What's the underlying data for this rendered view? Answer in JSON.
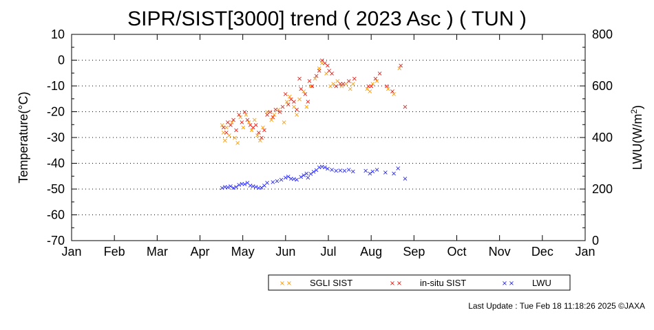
{
  "chart_data": {
    "type": "scatter",
    "title": "SIPR/SIST[3000] trend ( 2023 Asc ) ( TUN )",
    "ylabel": "Temperature(°C)",
    "y2label_main": "LWU(W/m",
    "y2label_sup": "2",
    "y2label_end": ")",
    "xlabel": "",
    "x_categories": [
      "Jan",
      "Feb",
      "Mar",
      "Apr",
      "May",
      "Jun",
      "Jul",
      "Aug",
      "Sep",
      "Oct",
      "Nov",
      "Dec",
      "Jan"
    ],
    "ylim": [
      -70,
      10
    ],
    "yticks": [
      10,
      0,
      -10,
      -20,
      -30,
      -40,
      -50,
      -60,
      -70
    ],
    "y2lim": [
      0,
      800
    ],
    "y2ticks": [
      800,
      600,
      400,
      200,
      0
    ],
    "grid": "horizontal dotted",
    "legend_placement": "bottom",
    "series": [
      {
        "name": "SGLI SIST",
        "color": "#ff9900",
        "axis": "left",
        "points": [
          [
            "2023-04-18",
            -25
          ],
          [
            "2023-04-19",
            -28
          ],
          [
            "2023-04-20",
            -31
          ],
          [
            "2023-04-21",
            -26
          ],
          [
            "2023-04-23",
            -29
          ],
          [
            "2023-04-25",
            -24
          ],
          [
            "2023-04-27",
            -30
          ],
          [
            "2023-04-29",
            -32
          ],
          [
            "2023-05-01",
            -22
          ],
          [
            "2023-05-03",
            -26
          ],
          [
            "2023-05-05",
            -21
          ],
          [
            "2023-05-07",
            -24
          ],
          [
            "2023-05-09",
            -27
          ],
          [
            "2023-05-11",
            -23
          ],
          [
            "2023-05-13",
            -29
          ],
          [
            "2023-05-15",
            -31
          ],
          [
            "2023-05-17",
            -26
          ],
          [
            "2023-05-20",
            -20
          ],
          [
            "2023-05-23",
            -23
          ],
          [
            "2023-05-25",
            -21
          ],
          [
            "2023-05-28",
            -19
          ],
          [
            "2023-06-01",
            -24
          ],
          [
            "2023-06-03",
            -16
          ],
          [
            "2023-06-05",
            -14
          ],
          [
            "2023-06-08",
            -18
          ],
          [
            "2023-06-10",
            -21
          ],
          [
            "2023-06-12",
            -15
          ],
          [
            "2023-06-15",
            -12
          ],
          [
            "2023-06-17",
            -18
          ],
          [
            "2023-06-20",
            -10
          ],
          [
            "2023-06-23",
            -7
          ],
          [
            "2023-06-26",
            -3
          ],
          [
            "2023-06-28",
            -1
          ],
          [
            "2023-07-01",
            -5
          ],
          [
            "2023-07-04",
            -10
          ],
          [
            "2023-07-06",
            -9
          ],
          [
            "2023-07-09",
            -8
          ],
          [
            "2023-07-12",
            -10
          ],
          [
            "2023-07-15",
            -9
          ],
          [
            "2023-07-18",
            -11
          ],
          [
            "2023-07-20",
            -9
          ],
          [
            "2023-07-30",
            -11
          ],
          [
            "2023-08-01",
            -12
          ],
          [
            "2023-08-03",
            -9
          ],
          [
            "2023-08-06",
            -8
          ],
          [
            "2023-08-14",
            -11
          ],
          [
            "2023-08-18",
            -13
          ],
          [
            "2023-08-22",
            -3
          ]
        ]
      },
      {
        "name": "in-situ SIST",
        "color": "#e8140c",
        "axis": "left",
        "points": [
          [
            "2023-04-19",
            -26
          ],
          [
            "2023-04-21",
            -28
          ],
          [
            "2023-04-22",
            -24
          ],
          [
            "2023-04-24",
            -25
          ],
          [
            "2023-04-26",
            -23
          ],
          [
            "2023-04-28",
            -27
          ],
          [
            "2023-04-30",
            -21
          ],
          [
            "2023-05-02",
            -24
          ],
          [
            "2023-05-04",
            -20
          ],
          [
            "2023-05-06",
            -23
          ],
          [
            "2023-05-08",
            -25
          ],
          [
            "2023-05-10",
            -26
          ],
          [
            "2023-05-12",
            -25
          ],
          [
            "2023-05-14",
            -28
          ],
          [
            "2023-05-16",
            -30
          ],
          [
            "2023-05-18",
            -27
          ],
          [
            "2023-05-20",
            -21
          ],
          [
            "2023-05-22",
            -20
          ],
          [
            "2023-05-24",
            -22
          ],
          [
            "2023-05-26",
            -19
          ],
          [
            "2023-05-29",
            -20
          ],
          [
            "2023-05-31",
            -18
          ],
          [
            "2023-06-02",
            -13
          ],
          [
            "2023-06-04",
            -17
          ],
          [
            "2023-06-06",
            -15
          ],
          [
            "2023-06-08",
            -16
          ],
          [
            "2023-06-10",
            -19
          ],
          [
            "2023-06-12",
            -7
          ],
          [
            "2023-06-13",
            -11
          ],
          [
            "2023-06-16",
            -13
          ],
          [
            "2023-06-18",
            -16
          ],
          [
            "2023-06-19",
            -8
          ],
          [
            "2023-06-21",
            -10
          ],
          [
            "2023-06-24",
            -6
          ],
          [
            "2023-06-26",
            -4
          ],
          [
            "2023-06-28",
            0
          ],
          [
            "2023-06-30",
            -1
          ],
          [
            "2023-07-02",
            -2
          ],
          [
            "2023-07-03",
            -4
          ],
          [
            "2023-07-05",
            -5
          ],
          [
            "2023-07-08",
            -10
          ],
          [
            "2023-07-11",
            -9
          ],
          [
            "2023-07-13",
            -9
          ],
          [
            "2023-07-17",
            -8
          ],
          [
            "2023-07-21",
            -7
          ],
          [
            "2023-07-31",
            -10
          ],
          [
            "2023-08-02",
            -10
          ],
          [
            "2023-08-05",
            -7
          ],
          [
            "2023-08-08",
            -5
          ],
          [
            "2023-08-13",
            -10
          ],
          [
            "2023-08-17",
            -12
          ],
          [
            "2023-08-23",
            -2
          ],
          [
            "2023-08-26",
            -18
          ]
        ]
      },
      {
        "name": "LWU",
        "color": "#1a1aff",
        "axis": "right",
        "points": [
          [
            "2023-04-18",
            205
          ],
          [
            "2023-04-20",
            210
          ],
          [
            "2023-04-22",
            208
          ],
          [
            "2023-04-24",
            212
          ],
          [
            "2023-04-26",
            205
          ],
          [
            "2023-04-28",
            210
          ],
          [
            "2023-04-30",
            218
          ],
          [
            "2023-05-02",
            222
          ],
          [
            "2023-05-04",
            220
          ],
          [
            "2023-05-06",
            225
          ],
          [
            "2023-05-08",
            215
          ],
          [
            "2023-05-10",
            212
          ],
          [
            "2023-05-12",
            210
          ],
          [
            "2023-05-14",
            205
          ],
          [
            "2023-05-16",
            207
          ],
          [
            "2023-05-18",
            215
          ],
          [
            "2023-05-20",
            225
          ],
          [
            "2023-05-24",
            228
          ],
          [
            "2023-05-27",
            232
          ],
          [
            "2023-05-30",
            238
          ],
          [
            "2023-06-02",
            245
          ],
          [
            "2023-06-04",
            250
          ],
          [
            "2023-06-06",
            242
          ],
          [
            "2023-06-08",
            240
          ],
          [
            "2023-06-10",
            238
          ],
          [
            "2023-06-13",
            248
          ],
          [
            "2023-06-15",
            255
          ],
          [
            "2023-06-17",
            262
          ],
          [
            "2023-06-18",
            245
          ],
          [
            "2023-06-20",
            260
          ],
          [
            "2023-06-22",
            268
          ],
          [
            "2023-06-24",
            275
          ],
          [
            "2023-06-26",
            285
          ],
          [
            "2023-06-28",
            288
          ],
          [
            "2023-06-30",
            285
          ],
          [
            "2023-07-02",
            280
          ],
          [
            "2023-07-05",
            276
          ],
          [
            "2023-07-08",
            272
          ],
          [
            "2023-07-11",
            274
          ],
          [
            "2023-07-14",
            272
          ],
          [
            "2023-07-17",
            276
          ],
          [
            "2023-07-20",
            270
          ],
          [
            "2023-07-29",
            272
          ],
          [
            "2023-08-01",
            262
          ],
          [
            "2023-08-03",
            270
          ],
          [
            "2023-08-06",
            276
          ],
          [
            "2023-08-12",
            265
          ],
          [
            "2023-08-18",
            262
          ],
          [
            "2023-08-21",
            282
          ],
          [
            "2023-08-26",
            242
          ]
        ]
      }
    ]
  },
  "footer": "Last Update : Tue Feb 18 11:18:26 2025  ©JAXA"
}
